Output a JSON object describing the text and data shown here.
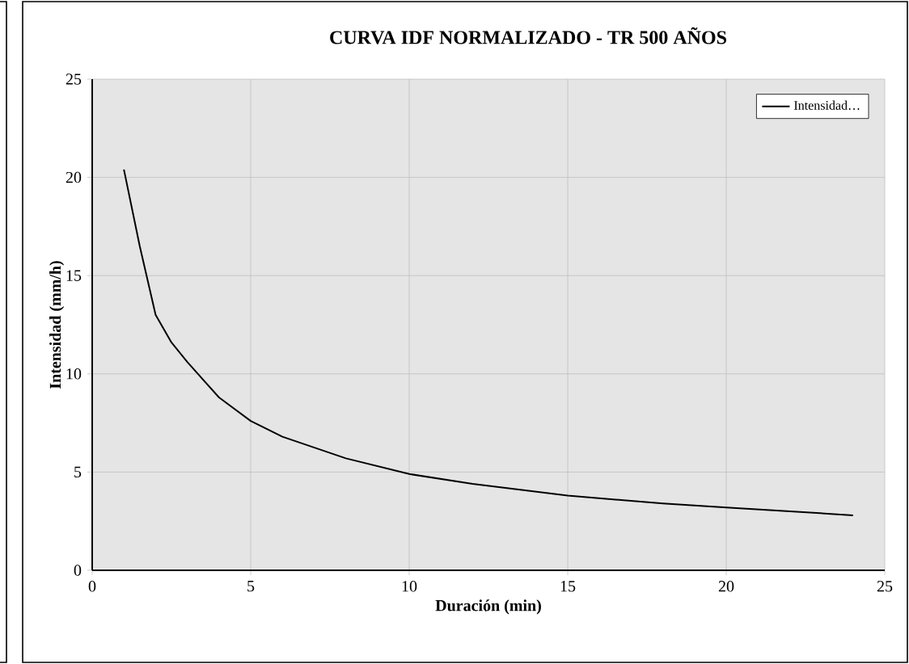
{
  "chart_data": {
    "type": "line",
    "title": "CURVA  IDF NORMALIZADO  - TR 500 AÑOS",
    "xlabel": "Duración (min)",
    "ylabel": "Intensidad (mm/h)",
    "series": [
      {
        "name": "Intensidad…",
        "color": "#000000",
        "x": [
          1,
          1.5,
          2,
          2.5,
          3,
          4,
          5,
          6,
          8,
          10,
          12,
          15,
          18,
          20,
          24
        ],
        "values": [
          20.4,
          16.5,
          13.0,
          11.6,
          10.6,
          8.8,
          7.6,
          6.8,
          5.7,
          4.9,
          4.4,
          3.8,
          3.4,
          3.2,
          2.8
        ]
      }
    ],
    "xlim": [
      0,
      25
    ],
    "ylim": [
      0,
      25
    ],
    "xticks": [
      0,
      5,
      10,
      15,
      20,
      25
    ],
    "yticks": [
      0,
      5,
      10,
      15,
      20,
      25
    ],
    "grid": true,
    "legend": "top right",
    "marker": "none",
    "line_style": "solid"
  }
}
